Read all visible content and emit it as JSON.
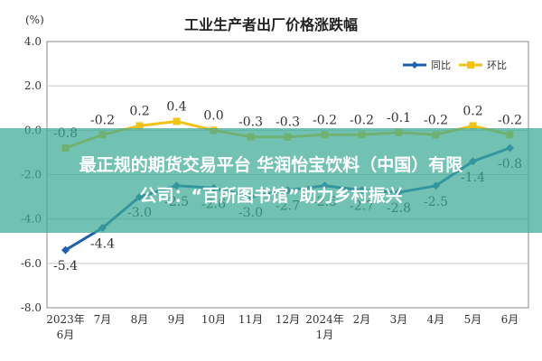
{
  "chart_data": {
    "type": "line",
    "title": "工业生产者出厂价格涨跌幅",
    "ylabel": "(%)",
    "ylim": [
      -8.0,
      4.0
    ],
    "yticks": [
      "4.0",
      "2.0",
      "0.0",
      "-2.0",
      "-4.0",
      "-6.0",
      "-8.0"
    ],
    "categories": [
      "2023年\n6月",
      "7月",
      "8月",
      "9月",
      "10月",
      "11月",
      "12月",
      "2024年\n1月",
      "2月",
      "3月",
      "4月",
      "5月",
      "6月"
    ],
    "legend_position": "top-right",
    "series": [
      {
        "name": "同比",
        "color": "#1f5fb0",
        "values": [
          -5.4,
          -4.4,
          -3.0,
          -2.5,
          -2.6,
          -3.0,
          -2.7,
          -2.5,
          -2.7,
          -2.8,
          -2.5,
          -1.4,
          -0.8
        ],
        "labels": [
          "-5.4",
          "-4.4",
          "-3.0",
          "-2.5",
          "-2.6",
          "-3.0",
          "-2.7",
          "-2.5",
          "-2.7",
          "-2.8",
          "-2.5",
          "-1.4",
          "-0.8"
        ]
      },
      {
        "name": "环比",
        "color": "#f2c318",
        "values": [
          -0.8,
          -0.2,
          0.2,
          0.4,
          0.0,
          -0.3,
          -0.3,
          -0.2,
          -0.2,
          -0.1,
          -0.2,
          0.2,
          -0.2
        ],
        "labels": [
          "-0.8",
          "-0.2",
          "0.2",
          "0.4",
          "0.0",
          "-0.3",
          "-0.3",
          "-0.2",
          "-0.2",
          "-0.1",
          "-0.2",
          "0.2",
          "-0.2"
        ]
      }
    ]
  },
  "banner": {
    "line1": "最正规的期货交易平台 华润怡宝饮料（中国）有限",
    "line2": "公司：“百所图书馆”助力乡村振兴"
  }
}
